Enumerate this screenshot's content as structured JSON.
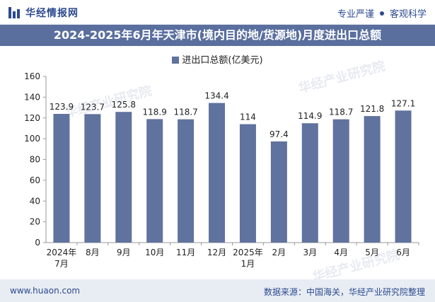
{
  "header": {
    "brand": "华经情报网",
    "tag1": "专业严谨",
    "tag2": "客观科学"
  },
  "title": "2024-2025年6月年天津市(境内目的地/货源地)月度进出口总额",
  "footer": {
    "website": "www.huaon.com",
    "source": "数据来源：中国海关，华经产业研究院整理"
  },
  "watermark": "华经产业研究院",
  "colors": {
    "bar": "#60729e",
    "title_bg": "#5a6f9e",
    "brand": "#2d4a8f"
  },
  "chart_data": {
    "type": "bar",
    "title": "2024-2025年6月年天津市(境内目的地/货源地)月度进出口总额",
    "legend": "进出口总额(亿美元)",
    "categories": [
      "2024年7月",
      "8月",
      "9月",
      "10月",
      "11月",
      "12月",
      "2025年1月",
      "2月",
      "3月",
      "4月",
      "5月",
      "6月"
    ],
    "values": [
      123.9,
      123.7,
      125.8,
      118.9,
      118.7,
      134.4,
      114,
      97.4,
      114.9,
      118.7,
      121.8,
      127.1
    ],
    "value_labels": [
      "123.9",
      "123.7",
      "125.8",
      "118.9",
      "118.7",
      "134.4",
      "114",
      "97.4",
      "114.9",
      "118.7",
      "121.8",
      "127.1"
    ],
    "ylim": [
      0,
      160
    ],
    "yticks": [
      0,
      20,
      40,
      60,
      80,
      100,
      120,
      140,
      160
    ],
    "xlabel": "",
    "ylabel": ""
  }
}
